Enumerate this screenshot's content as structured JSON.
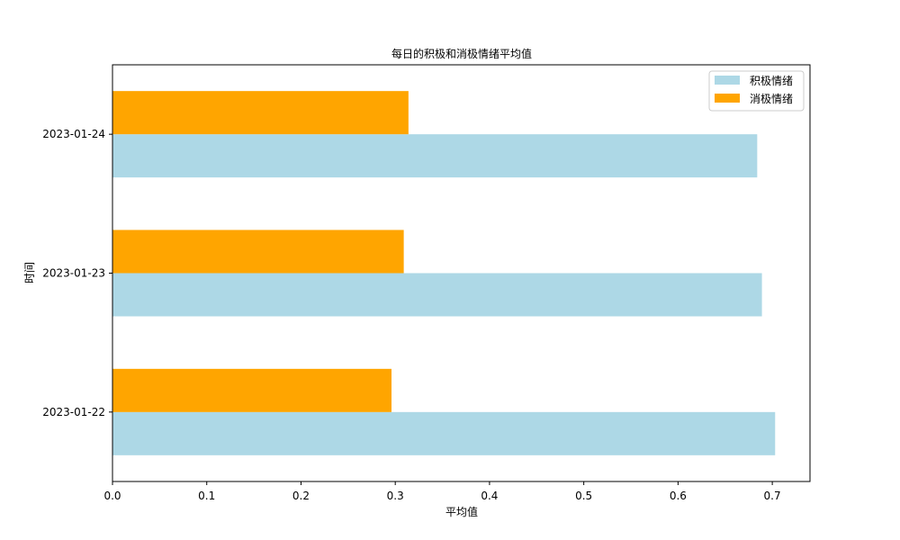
{
  "chart_data": {
    "type": "bar",
    "orientation": "horizontal",
    "title": "每日的积极和消极情绪平均值",
    "xlabel": "平均值",
    "ylabel": "时间",
    "categories": [
      "2023-01-22",
      "2023-01-23",
      "2023-01-24"
    ],
    "series": [
      {
        "name": "积极情绪",
        "values": [
          0.703,
          0.689,
          0.684
        ],
        "color": "#add8e6"
      },
      {
        "name": "消极情绪",
        "values": [
          0.296,
          0.309,
          0.314
        ],
        "color": "#ffa500"
      }
    ],
    "xlim": [
      0,
      0.74
    ],
    "xticks": [
      0.0,
      0.1,
      0.2,
      0.3,
      0.4,
      0.5,
      0.6,
      0.7
    ],
    "xtick_labels": [
      "0.0",
      "0.1",
      "0.2",
      "0.3",
      "0.4",
      "0.5",
      "0.6",
      "0.7"
    ],
    "grid": false,
    "legend_position": "top-right"
  }
}
